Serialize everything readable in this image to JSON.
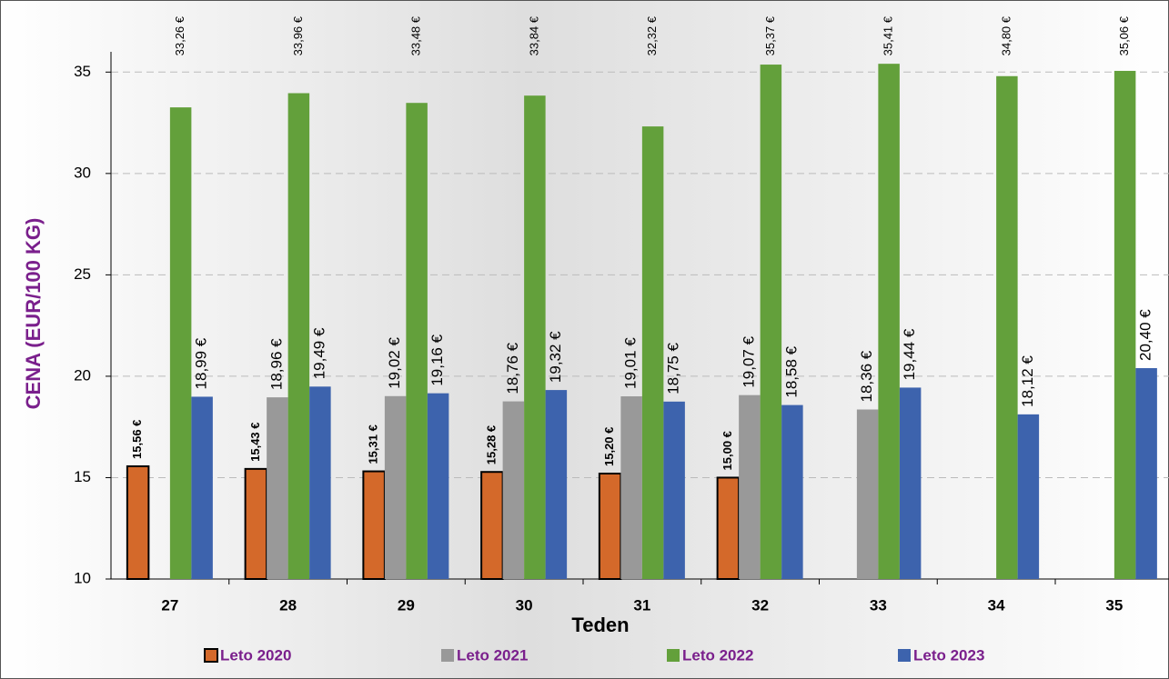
{
  "chart_data": {
    "type": "bar",
    "xlabel": "Teden",
    "ylabel": "CENA (EUR/100 KG)",
    "categories": [
      "27",
      "28",
      "29",
      "30",
      "31",
      "32",
      "33",
      "34",
      "35"
    ],
    "series": [
      {
        "name": "Leto 2020",
        "color": "#d4692a",
        "values": [
          15.56,
          15.43,
          15.31,
          15.28,
          15.2,
          15.0,
          null,
          null,
          null
        ],
        "value_labels": [
          "15,56 €",
          "15,43 €",
          "15,31 €",
          "15,28 €",
          "15,20 €",
          "15,00 €",
          null,
          null,
          null
        ]
      },
      {
        "name": "Leto 2021",
        "color": "#999999",
        "values": [
          null,
          18.96,
          19.02,
          18.76,
          19.01,
          19.07,
          18.36,
          null,
          null
        ],
        "value_labels": [
          null,
          "18,96 €",
          "19,02 €",
          "18,76 €",
          "19,01 €",
          "19,07 €",
          "18,36 €",
          null,
          null
        ]
      },
      {
        "name": "Leto 2022",
        "color": "#63a03b",
        "values": [
          33.26,
          33.96,
          33.48,
          33.84,
          32.32,
          35.37,
          35.41,
          34.8,
          35.06
        ],
        "value_labels": [
          "33,26 €",
          "33,96 €",
          "33,48 €",
          "33,84 €",
          "32,32 €",
          "35,37 €",
          "35,41 €",
          "34,80 €",
          "35,06 €"
        ]
      },
      {
        "name": "Leto 2023",
        "color": "#3d63ad",
        "values": [
          18.99,
          19.49,
          19.16,
          19.32,
          18.75,
          18.58,
          19.44,
          18.12,
          20.4
        ],
        "value_labels": [
          "18,99 €",
          "19,49 €",
          "19,16 €",
          "19,32 €",
          "18,75 €",
          "18,58 €",
          "19,44 €",
          "18,12 €",
          "20,40 €"
        ]
      }
    ],
    "ylim": [
      10,
      36
    ],
    "yticks": [
      10,
      15,
      20,
      25,
      30,
      35
    ],
    "grid": true,
    "legend": "bottom"
  }
}
